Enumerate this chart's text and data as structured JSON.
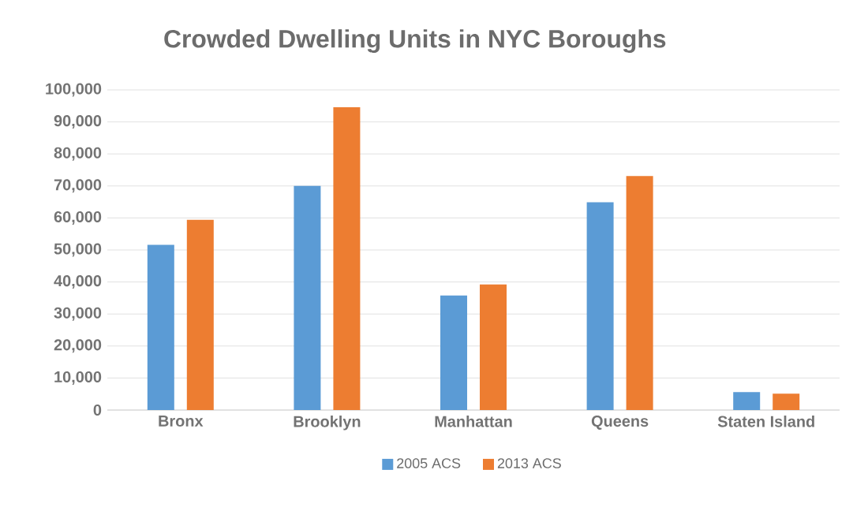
{
  "chart_data": {
    "type": "bar",
    "title": "Crowded Dwelling Units in NYC Boroughs",
    "categories": [
      "Bronx",
      "Brooklyn",
      "Manhattan",
      "Queens",
      "Staten Island"
    ],
    "series": [
      {
        "name": "2005 ACS",
        "color": "#5b9bd5",
        "values": [
          51600,
          70000,
          35800,
          64900,
          5600
        ]
      },
      {
        "name": "2013 ACS",
        "color": "#ed7d31",
        "values": [
          59400,
          94600,
          39200,
          73100,
          5100
        ]
      }
    ],
    "ylim": [
      0,
      100000
    ],
    "yticks": [
      {
        "value": 0,
        "label": "0"
      },
      {
        "value": 10000,
        "label": "10,000"
      },
      {
        "value": 20000,
        "label": "20,000"
      },
      {
        "value": 30000,
        "label": "30,000"
      },
      {
        "value": 40000,
        "label": "40,000"
      },
      {
        "value": 50000,
        "label": "50,000"
      },
      {
        "value": 60000,
        "label": "60,000"
      },
      {
        "value": 70000,
        "label": "70,000"
      },
      {
        "value": 80000,
        "label": "80,000"
      },
      {
        "value": 90000,
        "label": "90,000"
      },
      {
        "value": 100000,
        "label": "100,000"
      }
    ],
    "grid": "y",
    "legend": "bottom"
  }
}
